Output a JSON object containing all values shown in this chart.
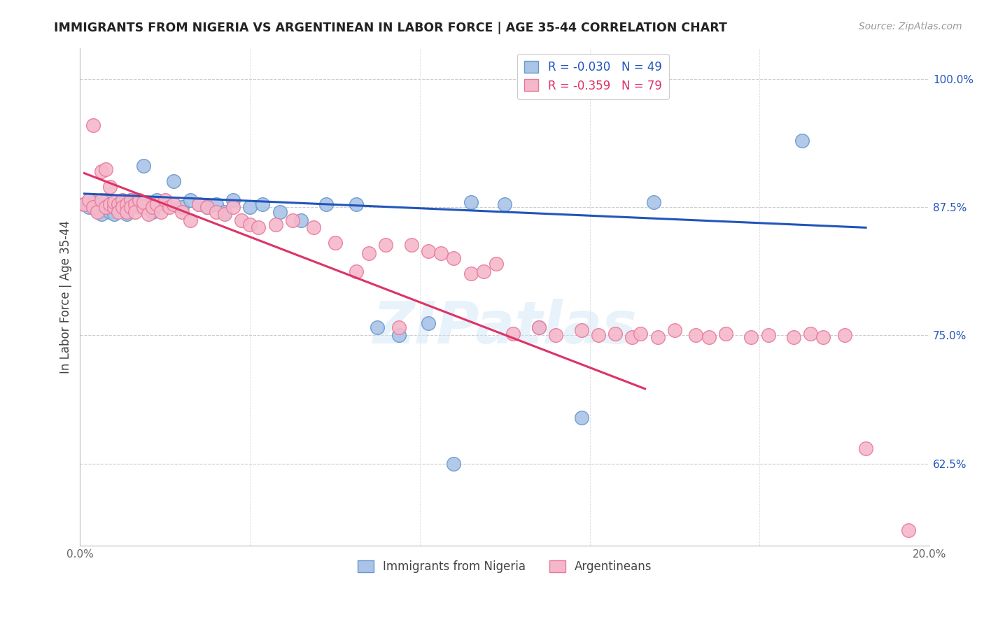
{
  "title": "IMMIGRANTS FROM NIGERIA VS ARGENTINEAN IN LABOR FORCE | AGE 35-44 CORRELATION CHART",
  "source": "Source: ZipAtlas.com",
  "ylabel": "In Labor Force | Age 35-44",
  "xlim": [
    0.0,
    0.2
  ],
  "ylim": [
    0.545,
    1.03
  ],
  "yticks_right": [
    0.625,
    0.75,
    0.875,
    1.0
  ],
  "ytick_labels_right": [
    "62.5%",
    "75.0%",
    "87.5%",
    "100.0%"
  ],
  "nigeria_R": -0.03,
  "nigeria_N": 49,
  "argentina_R": -0.359,
  "argentina_N": 79,
  "nigeria_color": "#aac4e8",
  "nigeria_edge_color": "#6699cc",
  "argentina_color": "#f5b8cb",
  "argentina_edge_color": "#e8799a",
  "nigeria_line_color": "#2255bb",
  "argentina_line_color": "#dd3366",
  "watermark": "ZIPatlas",
  "nigeria_x": [
    0.001,
    0.002,
    0.003,
    0.004,
    0.005,
    0.005,
    0.006,
    0.006,
    0.007,
    0.007,
    0.008,
    0.008,
    0.009,
    0.01,
    0.01,
    0.011,
    0.012,
    0.012,
    0.013,
    0.014,
    0.015,
    0.016,
    0.017,
    0.018,
    0.02,
    0.022,
    0.024,
    0.026,
    0.028,
    0.03,
    0.032,
    0.034,
    0.036,
    0.04,
    0.043,
    0.047,
    0.052,
    0.058,
    0.065,
    0.07,
    0.075,
    0.082,
    0.088,
    0.092,
    0.1,
    0.108,
    0.118,
    0.135,
    0.17
  ],
  "nigeria_y": [
    0.878,
    0.875,
    0.88,
    0.872,
    0.868,
    0.878,
    0.875,
    0.882,
    0.87,
    0.878,
    0.875,
    0.868,
    0.878,
    0.875,
    0.88,
    0.868,
    0.882,
    0.875,
    0.88,
    0.875,
    0.915,
    0.878,
    0.87,
    0.882,
    0.878,
    0.9,
    0.875,
    0.882,
    0.878,
    0.875,
    0.878,
    0.87,
    0.882,
    0.875,
    0.878,
    0.87,
    0.862,
    0.878,
    0.878,
    0.758,
    0.75,
    0.762,
    0.625,
    0.88,
    0.878,
    0.758,
    0.67,
    0.88,
    0.94
  ],
  "argentina_x": [
    0.001,
    0.002,
    0.003,
    0.003,
    0.004,
    0.005,
    0.005,
    0.006,
    0.006,
    0.007,
    0.007,
    0.008,
    0.008,
    0.009,
    0.009,
    0.01,
    0.01,
    0.011,
    0.011,
    0.012,
    0.012,
    0.013,
    0.013,
    0.014,
    0.015,
    0.015,
    0.016,
    0.017,
    0.018,
    0.019,
    0.02,
    0.021,
    0.022,
    0.024,
    0.026,
    0.028,
    0.03,
    0.032,
    0.034,
    0.036,
    0.038,
    0.04,
    0.042,
    0.046,
    0.05,
    0.055,
    0.06,
    0.065,
    0.068,
    0.072,
    0.075,
    0.078,
    0.082,
    0.085,
    0.088,
    0.092,
    0.095,
    0.098,
    0.102,
    0.108,
    0.112,
    0.118,
    0.122,
    0.126,
    0.13,
    0.132,
    0.136,
    0.14,
    0.145,
    0.148,
    0.152,
    0.158,
    0.162,
    0.168,
    0.172,
    0.175,
    0.18,
    0.185,
    0.195
  ],
  "argentina_y": [
    0.878,
    0.882,
    0.955,
    0.875,
    0.87,
    0.91,
    0.882,
    0.875,
    0.912,
    0.878,
    0.895,
    0.875,
    0.88,
    0.878,
    0.87,
    0.882,
    0.875,
    0.878,
    0.87,
    0.882,
    0.875,
    0.878,
    0.87,
    0.882,
    0.875,
    0.88,
    0.868,
    0.875,
    0.878,
    0.87,
    0.882,
    0.875,
    0.878,
    0.87,
    0.862,
    0.878,
    0.875,
    0.87,
    0.868,
    0.875,
    0.862,
    0.858,
    0.855,
    0.858,
    0.862,
    0.855,
    0.84,
    0.812,
    0.83,
    0.838,
    0.758,
    0.838,
    0.832,
    0.83,
    0.825,
    0.81,
    0.812,
    0.82,
    0.752,
    0.758,
    0.75,
    0.755,
    0.75,
    0.752,
    0.748,
    0.752,
    0.748,
    0.755,
    0.75,
    0.748,
    0.752,
    0.748,
    0.75,
    0.748,
    0.752,
    0.748,
    0.75,
    0.64,
    0.56
  ]
}
